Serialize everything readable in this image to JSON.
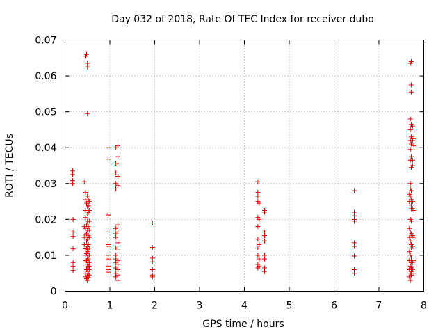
{
  "chart_data": {
    "type": "scatter",
    "title": "Day 032 of 2018, Rate Of TEC Index for receiver dubo",
    "xlabel": "GPS time / hours",
    "ylabel": "ROTI / TECUs",
    "xlim": [
      0,
      8
    ],
    "ylim": [
      0,
      0.07
    ],
    "x_ticks": [
      "0",
      "1",
      "2",
      "3",
      "4",
      "5",
      "6",
      "7",
      "8"
    ],
    "y_ticks": [
      "0",
      "0.01",
      "0.02",
      "0.03",
      "0.04",
      "0.05",
      "0.06",
      "0.07"
    ],
    "grid": true,
    "color": "#e00000",
    "marker": "plus",
    "points": [
      [
        0.17,
        0.0335
      ],
      [
        0.17,
        0.0325
      ],
      [
        0.17,
        0.0308
      ],
      [
        0.17,
        0.03
      ],
      [
        0.18,
        0.02
      ],
      [
        0.18,
        0.0165
      ],
      [
        0.18,
        0.0153
      ],
      [
        0.18,
        0.0118
      ],
      [
        0.18,
        0.008
      ],
      [
        0.18,
        0.007
      ],
      [
        0.18,
        0.0058
      ],
      [
        0.43,
        0.0305
      ],
      [
        0.43,
        0.018
      ],
      [
        0.43,
        0.015
      ],
      [
        0.43,
        0.013
      ],
      [
        0.45,
        0.0655
      ],
      [
        0.46,
        0.0275
      ],
      [
        0.46,
        0.0255
      ],
      [
        0.46,
        0.0225
      ],
      [
        0.46,
        0.0205
      ],
      [
        0.46,
        0.0175
      ],
      [
        0.46,
        0.0158
      ],
      [
        0.46,
        0.0118
      ],
      [
        0.46,
        0.01
      ],
      [
        0.46,
        0.0085
      ],
      [
        0.46,
        0.005
      ],
      [
        0.46,
        0.004
      ],
      [
        0.48,
        0.066
      ],
      [
        0.48,
        0.0245
      ],
      [
        0.48,
        0.0185
      ],
      [
        0.48,
        0.016
      ],
      [
        0.48,
        0.014
      ],
      [
        0.48,
        0.012
      ],
      [
        0.48,
        0.0105
      ],
      [
        0.48,
        0.0085
      ],
      [
        0.48,
        0.006
      ],
      [
        0.48,
        0.0035
      ],
      [
        0.5,
        0.0635
      ],
      [
        0.5,
        0.0625
      ],
      [
        0.5,
        0.0495
      ],
      [
        0.5,
        0.0265
      ],
      [
        0.5,
        0.0235
      ],
      [
        0.5,
        0.0215
      ],
      [
        0.5,
        0.0195
      ],
      [
        0.5,
        0.017
      ],
      [
        0.5,
        0.0145
      ],
      [
        0.5,
        0.0125
      ],
      [
        0.5,
        0.011
      ],
      [
        0.5,
        0.0095
      ],
      [
        0.5,
        0.0075
      ],
      [
        0.5,
        0.006
      ],
      [
        0.5,
        0.0045
      ],
      [
        0.5,
        0.003
      ],
      [
        0.52,
        0.0255
      ],
      [
        0.52,
        0.0238
      ],
      [
        0.52,
        0.022
      ],
      [
        0.52,
        0.018
      ],
      [
        0.52,
        0.0155
      ],
      [
        0.52,
        0.013
      ],
      [
        0.52,
        0.0115
      ],
      [
        0.52,
        0.009
      ],
      [
        0.52,
        0.007
      ],
      [
        0.52,
        0.005
      ],
      [
        0.52,
        0.0038
      ],
      [
        0.54,
        0.025
      ],
      [
        0.54,
        0.0225
      ],
      [
        0.54,
        0.0195
      ],
      [
        0.54,
        0.017
      ],
      [
        0.54,
        0.015
      ],
      [
        0.54,
        0.012
      ],
      [
        0.54,
        0.01
      ],
      [
        0.54,
        0.008
      ],
      [
        0.54,
        0.007
      ],
      [
        0.54,
        0.006
      ],
      [
        0.54,
        0.0045
      ],
      [
        0.96,
        0.04
      ],
      [
        0.96,
        0.0368
      ],
      [
        0.96,
        0.0215
      ],
      [
        0.96,
        0.0212
      ],
      [
        0.96,
        0.0165
      ],
      [
        0.96,
        0.013
      ],
      [
        0.96,
        0.0125
      ],
      [
        0.96,
        0.01
      ],
      [
        0.96,
        0.009
      ],
      [
        0.96,
        0.007
      ],
      [
        0.96,
        0.006
      ],
      [
        0.96,
        0.0053
      ],
      [
        1.13,
        0.04
      ],
      [
        1.13,
        0.0355
      ],
      [
        1.13,
        0.033
      ],
      [
        1.13,
        0.03
      ],
      [
        1.13,
        0.0285
      ],
      [
        1.13,
        0.0175
      ],
      [
        1.13,
        0.016
      ],
      [
        1.13,
        0.015
      ],
      [
        1.13,
        0.012
      ],
      [
        1.13,
        0.01
      ],
      [
        1.13,
        0.009
      ],
      [
        1.13,
        0.008
      ],
      [
        1.13,
        0.0065
      ],
      [
        1.13,
        0.005
      ],
      [
        1.13,
        0.004
      ],
      [
        1.18,
        0.0405
      ],
      [
        1.18,
        0.0375
      ],
      [
        1.18,
        0.0355
      ],
      [
        1.18,
        0.032
      ],
      [
        1.18,
        0.0295
      ],
      [
        1.18,
        0.0185
      ],
      [
        1.18,
        0.0165
      ],
      [
        1.18,
        0.0135
      ],
      [
        1.18,
        0.0115
      ],
      [
        1.18,
        0.0085
      ],
      [
        1.18,
        0.0075
      ],
      [
        1.18,
        0.006
      ],
      [
        1.18,
        0.0045
      ],
      [
        1.18,
        0.003
      ],
      [
        1.95,
        0.019
      ],
      [
        1.95,
        0.0122
      ],
      [
        1.95,
        0.0092
      ],
      [
        1.95,
        0.0082
      ],
      [
        1.95,
        0.006
      ],
      [
        1.95,
        0.0045
      ],
      [
        1.95,
        0.004
      ],
      [
        4.3,
        0.0305
      ],
      [
        4.3,
        0.0275
      ],
      [
        4.3,
        0.0265
      ],
      [
        4.3,
        0.025
      ],
      [
        4.3,
        0.0205
      ],
      [
        4.3,
        0.018
      ],
      [
        4.3,
        0.0145
      ],
      [
        4.3,
        0.012
      ],
      [
        4.3,
        0.01
      ],
      [
        4.3,
        0.0075
      ],
      [
        4.3,
        0.0065
      ],
      [
        4.33,
        0.0245
      ],
      [
        4.33,
        0.02
      ],
      [
        4.33,
        0.013
      ],
      [
        4.33,
        0.009
      ],
      [
        4.33,
        0.007
      ],
      [
        4.45,
        0.0225
      ],
      [
        4.45,
        0.022
      ],
      [
        4.45,
        0.0165
      ],
      [
        4.45,
        0.0155
      ],
      [
        4.45,
        0.014
      ],
      [
        4.45,
        0.01
      ],
      [
        4.45,
        0.009
      ],
      [
        4.45,
        0.0065
      ],
      [
        4.45,
        0.0055
      ],
      [
        6.45,
        0.028
      ],
      [
        6.45,
        0.022
      ],
      [
        6.45,
        0.021
      ],
      [
        6.45,
        0.02
      ],
      [
        6.45,
        0.0195
      ],
      [
        6.45,
        0.0135
      ],
      [
        6.45,
        0.0125
      ],
      [
        6.45,
        0.0098
      ],
      [
        6.45,
        0.006
      ],
      [
        6.45,
        0.005
      ],
      [
        7.68,
        0.027
      ],
      [
        7.68,
        0.025
      ],
      [
        7.68,
        0.0175
      ],
      [
        7.68,
        0.015
      ],
      [
        7.68,
        0.011
      ],
      [
        7.68,
        0.0085
      ],
      [
        7.68,
        0.006
      ],
      [
        7.68,
        0.004
      ],
      [
        7.7,
        0.0635
      ],
      [
        7.7,
        0.048
      ],
      [
        7.7,
        0.045
      ],
      [
        7.7,
        0.042
      ],
      [
        7.7,
        0.0395
      ],
      [
        7.7,
        0.0365
      ],
      [
        7.7,
        0.03
      ],
      [
        7.7,
        0.0285
      ],
      [
        7.7,
        0.0265
      ],
      [
        7.7,
        0.02
      ],
      [
        7.7,
        0.0165
      ],
      [
        7.7,
        0.014
      ],
      [
        7.7,
        0.01
      ],
      [
        7.7,
        0.007
      ],
      [
        7.7,
        0.005
      ],
      [
        7.7,
        0.003
      ],
      [
        7.72,
        0.064
      ],
      [
        7.72,
        0.0575
      ],
      [
        7.72,
        0.0555
      ],
      [
        7.72,
        0.0465
      ],
      [
        7.72,
        0.043
      ],
      [
        7.72,
        0.041
      ],
      [
        7.72,
        0.0375
      ],
      [
        7.72,
        0.0345
      ],
      [
        7.72,
        0.028
      ],
      [
        7.72,
        0.0255
      ],
      [
        7.72,
        0.024
      ],
      [
        7.72,
        0.023
      ],
      [
        7.72,
        0.0195
      ],
      [
        7.72,
        0.016
      ],
      [
        7.72,
        0.013
      ],
      [
        7.72,
        0.012
      ],
      [
        7.72,
        0.0095
      ],
      [
        7.72,
        0.008
      ],
      [
        7.72,
        0.0065
      ],
      [
        7.72,
        0.0055
      ],
      [
        7.72,
        0.0045
      ],
      [
        7.75,
        0.046
      ],
      [
        7.75,
        0.042
      ],
      [
        7.75,
        0.0365
      ],
      [
        7.75,
        0.035
      ],
      [
        7.75,
        0.025
      ],
      [
        7.75,
        0.023
      ],
      [
        7.75,
        0.0155
      ],
      [
        7.75,
        0.0125
      ],
      [
        7.75,
        0.008
      ],
      [
        7.75,
        0.006
      ],
      [
        7.78,
        0.0425
      ],
      [
        7.78,
        0.0405
      ],
      [
        7.78,
        0.0225
      ],
      [
        7.78,
        0.015
      ],
      [
        7.78,
        0.012
      ],
      [
        7.78,
        0.0085
      ],
      [
        7.78,
        0.005
      ]
    ]
  }
}
